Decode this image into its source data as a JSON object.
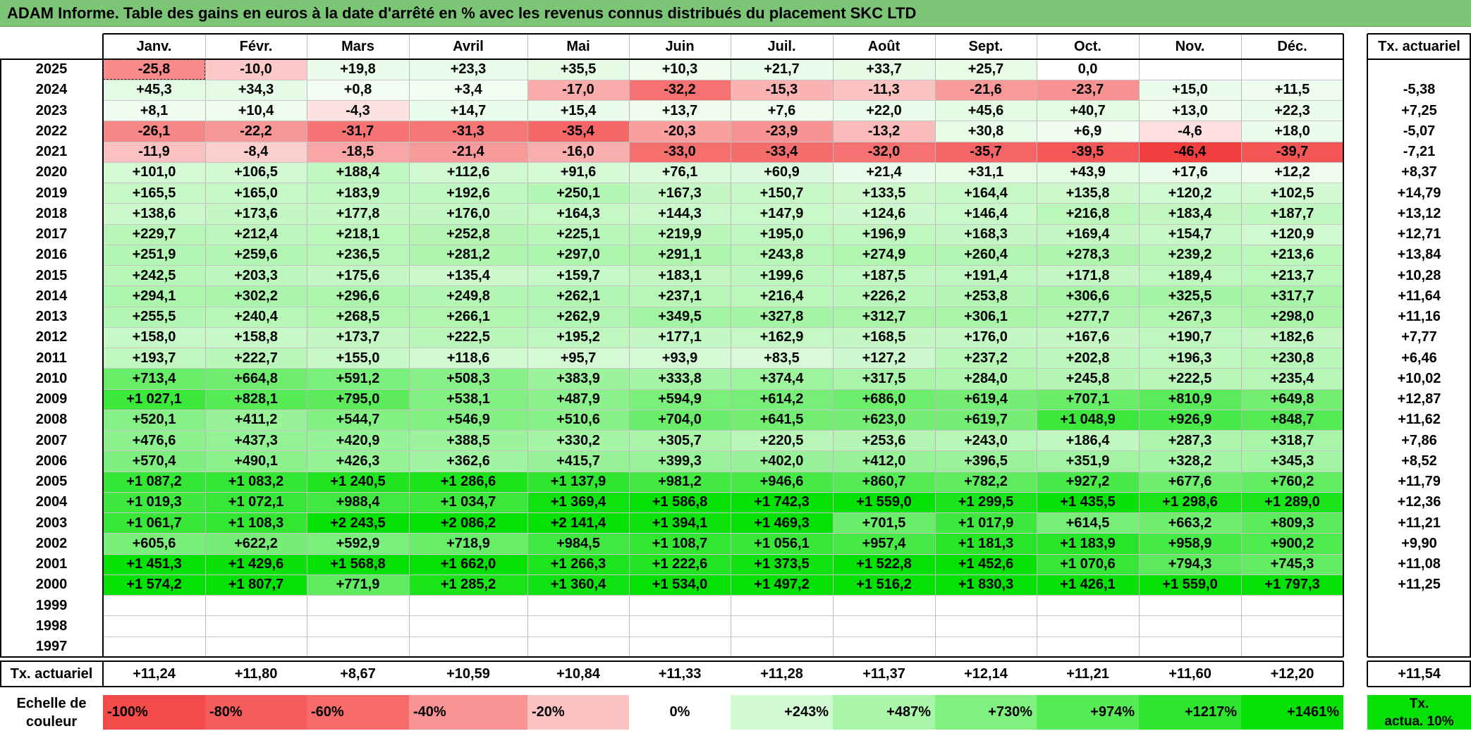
{
  "title": "ADAM Informe. Table des gains en euros à la date d'arrêté en % avec les revenus connus distribués du placement SKC LTD",
  "months": [
    "Janv.",
    "Févr.",
    "Mars",
    "Avril",
    "Mai",
    "Juin",
    "Juil.",
    "Août",
    "Sept.",
    "Oct.",
    "Nov.",
    "Déc."
  ],
  "tx_header": "Tx. actuariel",
  "rows": [
    {
      "year": "2025",
      "values": [
        "-25,8",
        "-10,0",
        "+19,8",
        "+23,3",
        "+35,5",
        "+10,3",
        "+21,7",
        "+33,7",
        "+25,7",
        "0,0",
        "",
        ""
      ],
      "tx": ""
    },
    {
      "year": "2024",
      "values": [
        "+45,3",
        "+34,3",
        "+0,8",
        "+3,4",
        "-17,0",
        "-32,2",
        "-15,3",
        "-11,3",
        "-21,6",
        "-23,7",
        "+15,0",
        "+11,5"
      ],
      "tx": "-5,38"
    },
    {
      "year": "2023",
      "values": [
        "+8,1",
        "+10,4",
        "-4,3",
        "+14,7",
        "+15,4",
        "+13,7",
        "+7,6",
        "+22,0",
        "+45,6",
        "+40,7",
        "+13,0",
        "+22,3"
      ],
      "tx": "+7,25"
    },
    {
      "year": "2022",
      "values": [
        "-26,1",
        "-22,2",
        "-31,7",
        "-31,3",
        "-35,4",
        "-20,3",
        "-23,9",
        "-13,2",
        "+30,8",
        "+6,9",
        "-4,6",
        "+18,0"
      ],
      "tx": "-5,07"
    },
    {
      "year": "2021",
      "values": [
        "-11,9",
        "-8,4",
        "-18,5",
        "-21,4",
        "-16,0",
        "-33,0",
        "-33,4",
        "-32,0",
        "-35,7",
        "-39,5",
        "-46,4",
        "-39,7"
      ],
      "tx": "-7,21"
    },
    {
      "year": "2020",
      "values": [
        "+101,0",
        "+106,5",
        "+188,4",
        "+112,6",
        "+91,6",
        "+76,1",
        "+60,9",
        "+21,4",
        "+31,1",
        "+43,9",
        "+17,6",
        "+12,2"
      ],
      "tx": "+8,37"
    },
    {
      "year": "2019",
      "values": [
        "+165,5",
        "+165,0",
        "+183,9",
        "+192,6",
        "+250,1",
        "+167,3",
        "+150,7",
        "+133,5",
        "+164,4",
        "+135,8",
        "+120,2",
        "+102,5"
      ],
      "tx": "+14,79"
    },
    {
      "year": "2018",
      "values": [
        "+138,6",
        "+173,6",
        "+177,8",
        "+176,0",
        "+164,3",
        "+144,3",
        "+147,9",
        "+124,6",
        "+146,4",
        "+216,8",
        "+183,4",
        "+187,7"
      ],
      "tx": "+13,12"
    },
    {
      "year": "2017",
      "values": [
        "+229,7",
        "+212,4",
        "+218,1",
        "+252,8",
        "+225,1",
        "+219,9",
        "+195,0",
        "+196,9",
        "+168,3",
        "+169,4",
        "+154,7",
        "+120,9"
      ],
      "tx": "+12,71"
    },
    {
      "year": "2016",
      "values": [
        "+251,9",
        "+259,6",
        "+236,5",
        "+281,2",
        "+297,0",
        "+291,1",
        "+243,8",
        "+274,9",
        "+260,4",
        "+278,3",
        "+239,2",
        "+213,6"
      ],
      "tx": "+13,84"
    },
    {
      "year": "2015",
      "values": [
        "+242,5",
        "+203,3",
        "+175,6",
        "+135,4",
        "+159,7",
        "+183,1",
        "+199,6",
        "+187,5",
        "+191,4",
        "+171,8",
        "+189,4",
        "+213,7"
      ],
      "tx": "+10,28"
    },
    {
      "year": "2014",
      "values": [
        "+294,1",
        "+302,2",
        "+296,6",
        "+249,8",
        "+262,1",
        "+237,1",
        "+216,4",
        "+226,2",
        "+253,8",
        "+306,6",
        "+325,5",
        "+317,7"
      ],
      "tx": "+11,64"
    },
    {
      "year": "2013",
      "values": [
        "+255,5",
        "+240,4",
        "+268,5",
        "+266,1",
        "+262,9",
        "+349,5",
        "+327,8",
        "+312,7",
        "+306,1",
        "+277,7",
        "+267,3",
        "+298,0"
      ],
      "tx": "+11,16"
    },
    {
      "year": "2012",
      "values": [
        "+158,0",
        "+158,8",
        "+173,7",
        "+222,5",
        "+195,2",
        "+177,1",
        "+162,9",
        "+168,5",
        "+176,0",
        "+167,6",
        "+190,7",
        "+182,6"
      ],
      "tx": "+7,77"
    },
    {
      "year": "2011",
      "values": [
        "+193,7",
        "+222,7",
        "+155,0",
        "+118,6",
        "+95,7",
        "+93,9",
        "+83,5",
        "+127,2",
        "+237,2",
        "+202,8",
        "+196,3",
        "+230,8"
      ],
      "tx": "+6,46"
    },
    {
      "year": "2010",
      "values": [
        "+713,4",
        "+664,8",
        "+591,2",
        "+508,3",
        "+383,9",
        "+333,8",
        "+374,4",
        "+317,5",
        "+284,0",
        "+245,8",
        "+222,5",
        "+235,4"
      ],
      "tx": "+10,02"
    },
    {
      "year": "2009",
      "values": [
        "+1 027,1",
        "+828,1",
        "+795,0",
        "+538,1",
        "+487,9",
        "+594,9",
        "+614,2",
        "+686,0",
        "+619,4",
        "+707,1",
        "+810,9",
        "+649,8"
      ],
      "tx": "+12,87"
    },
    {
      "year": "2008",
      "values": [
        "+520,1",
        "+411,2",
        "+544,7",
        "+546,9",
        "+510,6",
        "+704,0",
        "+641,5",
        "+623,0",
        "+619,7",
        "+1 048,9",
        "+926,9",
        "+848,7"
      ],
      "tx": "+11,62"
    },
    {
      "year": "2007",
      "values": [
        "+476,6",
        "+437,3",
        "+420,9",
        "+388,5",
        "+330,2",
        "+305,7",
        "+220,5",
        "+253,6",
        "+243,0",
        "+186,4",
        "+287,3",
        "+318,7"
      ],
      "tx": "+7,86"
    },
    {
      "year": "2006",
      "values": [
        "+570,4",
        "+490,1",
        "+426,3",
        "+362,6",
        "+415,7",
        "+399,3",
        "+402,0",
        "+412,0",
        "+396,5",
        "+351,9",
        "+328,2",
        "+345,3"
      ],
      "tx": "+8,52"
    },
    {
      "year": "2005",
      "values": [
        "+1 087,2",
        "+1 083,2",
        "+1 240,5",
        "+1 286,6",
        "+1 137,9",
        "+981,2",
        "+946,6",
        "+860,7",
        "+782,2",
        "+927,2",
        "+677,6",
        "+760,2"
      ],
      "tx": "+11,79"
    },
    {
      "year": "2004",
      "values": [
        "+1 019,3",
        "+1 072,1",
        "+988,4",
        "+1 034,7",
        "+1 369,4",
        "+1 586,8",
        "+1 742,3",
        "+1 559,0",
        "+1 299,5",
        "+1 435,5",
        "+1 298,6",
        "+1 289,0"
      ],
      "tx": "+12,36"
    },
    {
      "year": "2003",
      "values": [
        "+1 061,7",
        "+1 108,3",
        "+2 243,5",
        "+2 086,2",
        "+2 141,4",
        "+1 394,1",
        "+1 469,3",
        "+701,5",
        "+1 017,9",
        "+614,5",
        "+663,2",
        "+809,3"
      ],
      "tx": "+11,21"
    },
    {
      "year": "2002",
      "values": [
        "+605,6",
        "+622,2",
        "+592,9",
        "+718,9",
        "+984,5",
        "+1 108,7",
        "+1 056,1",
        "+957,4",
        "+1 181,3",
        "+1 183,9",
        "+958,9",
        "+900,2"
      ],
      "tx": "+9,90"
    },
    {
      "year": "2001",
      "values": [
        "+1 451,3",
        "+1 429,6",
        "+1 568,8",
        "+1 662,0",
        "+1 266,3",
        "+1 222,6",
        "+1 373,5",
        "+1 522,8",
        "+1 452,6",
        "+1 070,6",
        "+794,3",
        "+745,3"
      ],
      "tx": "+11,08"
    },
    {
      "year": "2000",
      "values": [
        "+1 574,2",
        "+1 807,7",
        "+771,9",
        "+1 285,2",
        "+1 360,4",
        "+1 534,0",
        "+1 497,2",
        "+1 516,2",
        "+1 830,3",
        "+1 426,1",
        "+1 559,0",
        "+1 797,3"
      ],
      "tx": "+11,25"
    },
    {
      "year": "1999",
      "values": [
        "",
        "",
        "",
        "",
        "",
        "",
        "",
        "",
        "",
        "",
        "",
        ""
      ],
      "tx": ""
    },
    {
      "year": "1998",
      "values": [
        "",
        "",
        "",
        "",
        "",
        "",
        "",
        "",
        "",
        "",
        "",
        ""
      ],
      "tx": ""
    },
    {
      "year": "1997",
      "values": [
        "",
        "",
        "",
        "",
        "",
        "",
        "",
        "",
        "",
        "",
        "",
        ""
      ],
      "tx": ""
    }
  ],
  "footer": {
    "label": "Tx. actuariel",
    "values": [
      "+11,24",
      "+11,80",
      "+8,67",
      "+10,59",
      "+10,84",
      "+11,33",
      "+11,28",
      "+11,37",
      "+12,14",
      "+11,21",
      "+11,60",
      "+12,20"
    ],
    "total": "+11,54"
  },
  "scale": {
    "label_line1": "Echelle de",
    "label_line2": "couleur",
    "items": [
      {
        "label": "-100%",
        "color": "#f44a4a",
        "align": "left"
      },
      {
        "label": "-80%",
        "color": "#f55c5c",
        "align": "left"
      },
      {
        "label": "-60%",
        "color": "#f76b6b",
        "align": "left"
      },
      {
        "label": "-40%",
        "color": "#f99393",
        "align": "left"
      },
      {
        "label": "-20%",
        "color": "#fcc2c2",
        "align": "left"
      },
      {
        "label": "0%",
        "color": "#ffffff",
        "align": "center"
      },
      {
        "label": "+243%",
        "color": "#d2fad2",
        "align": "right"
      },
      {
        "label": "+487%",
        "color": "#a9f5a9",
        "align": "right"
      },
      {
        "label": "+730%",
        "color": "#80f080",
        "align": "right"
      },
      {
        "label": "+974%",
        "color": "#57eb57",
        "align": "right"
      },
      {
        "label": "+1217%",
        "color": "#2ee62e",
        "align": "right"
      },
      {
        "label": "+1461%",
        "color": "#05e105",
        "align": "right"
      }
    ],
    "legend_line1": "Tx.",
    "legend_line2": "actua. 10%",
    "legend_color": "#05e105"
  },
  "colors": {
    "title_bg": "#7cc576",
    "neg_max": "#f23c3c",
    "pos_max": "#05e105"
  }
}
